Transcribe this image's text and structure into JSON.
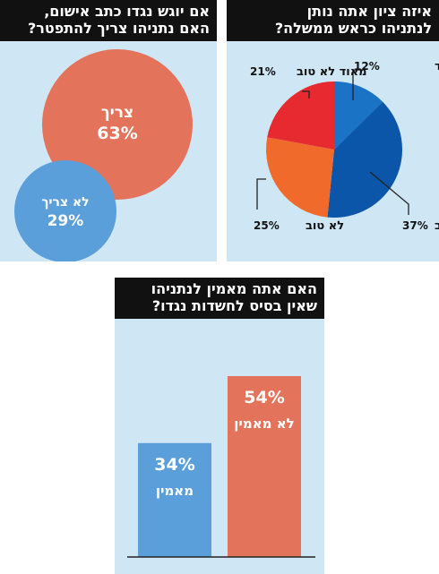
{
  "colors": {
    "panel_bg": "#cfe6f5",
    "title_bg": "#111111",
    "blue_light": "#5a9fd9",
    "blue_mid": "#1a73c5",
    "blue_dark": "#0b56a8",
    "orange": "#f06b2b",
    "red": "#e62a2f",
    "salmon": "#e3735a"
  },
  "panels": {
    "pie": {
      "title_line1": "איזה ציון אתה נותן",
      "title_line2": "לנתניהו כראש ממשלה?"
    },
    "bubble": {
      "title_line1": "אם יוגש נגדו כתב אישום,",
      "title_line2": "האם נתניהו צריך להתפטר?"
    },
    "bar": {
      "title_line1": "האם אתה מאמין לנתניהו",
      "title_line2": "שאין בסיס לחשדות נגדו?"
    }
  },
  "chart_data": [
    {
      "type": "pie",
      "categories": [
        "טוב מאוד",
        "טוב",
        "לא טוב",
        "מאוד לא טוב"
      ],
      "values": [
        12,
        37,
        25,
        21
      ],
      "value_labels": [
        "12%",
        "37%",
        "25%",
        "21%"
      ],
      "colors": [
        "#1a73c5",
        "#0b56a8",
        "#f06b2b",
        "#e62a2f"
      ]
    },
    {
      "type": "bubble",
      "categories": [
        "צריך",
        "לא צריך"
      ],
      "values": [
        63,
        29
      ],
      "value_labels": [
        "63%",
        "29%"
      ],
      "colors": [
        "#e3735a",
        "#5a9fd9"
      ]
    },
    {
      "type": "bar",
      "categories": [
        "מאמין",
        "לא מאמין"
      ],
      "values": [
        34,
        54
      ],
      "value_labels": [
        "34%",
        "54%"
      ],
      "colors": [
        "#5a9fd9",
        "#e3735a"
      ]
    }
  ]
}
